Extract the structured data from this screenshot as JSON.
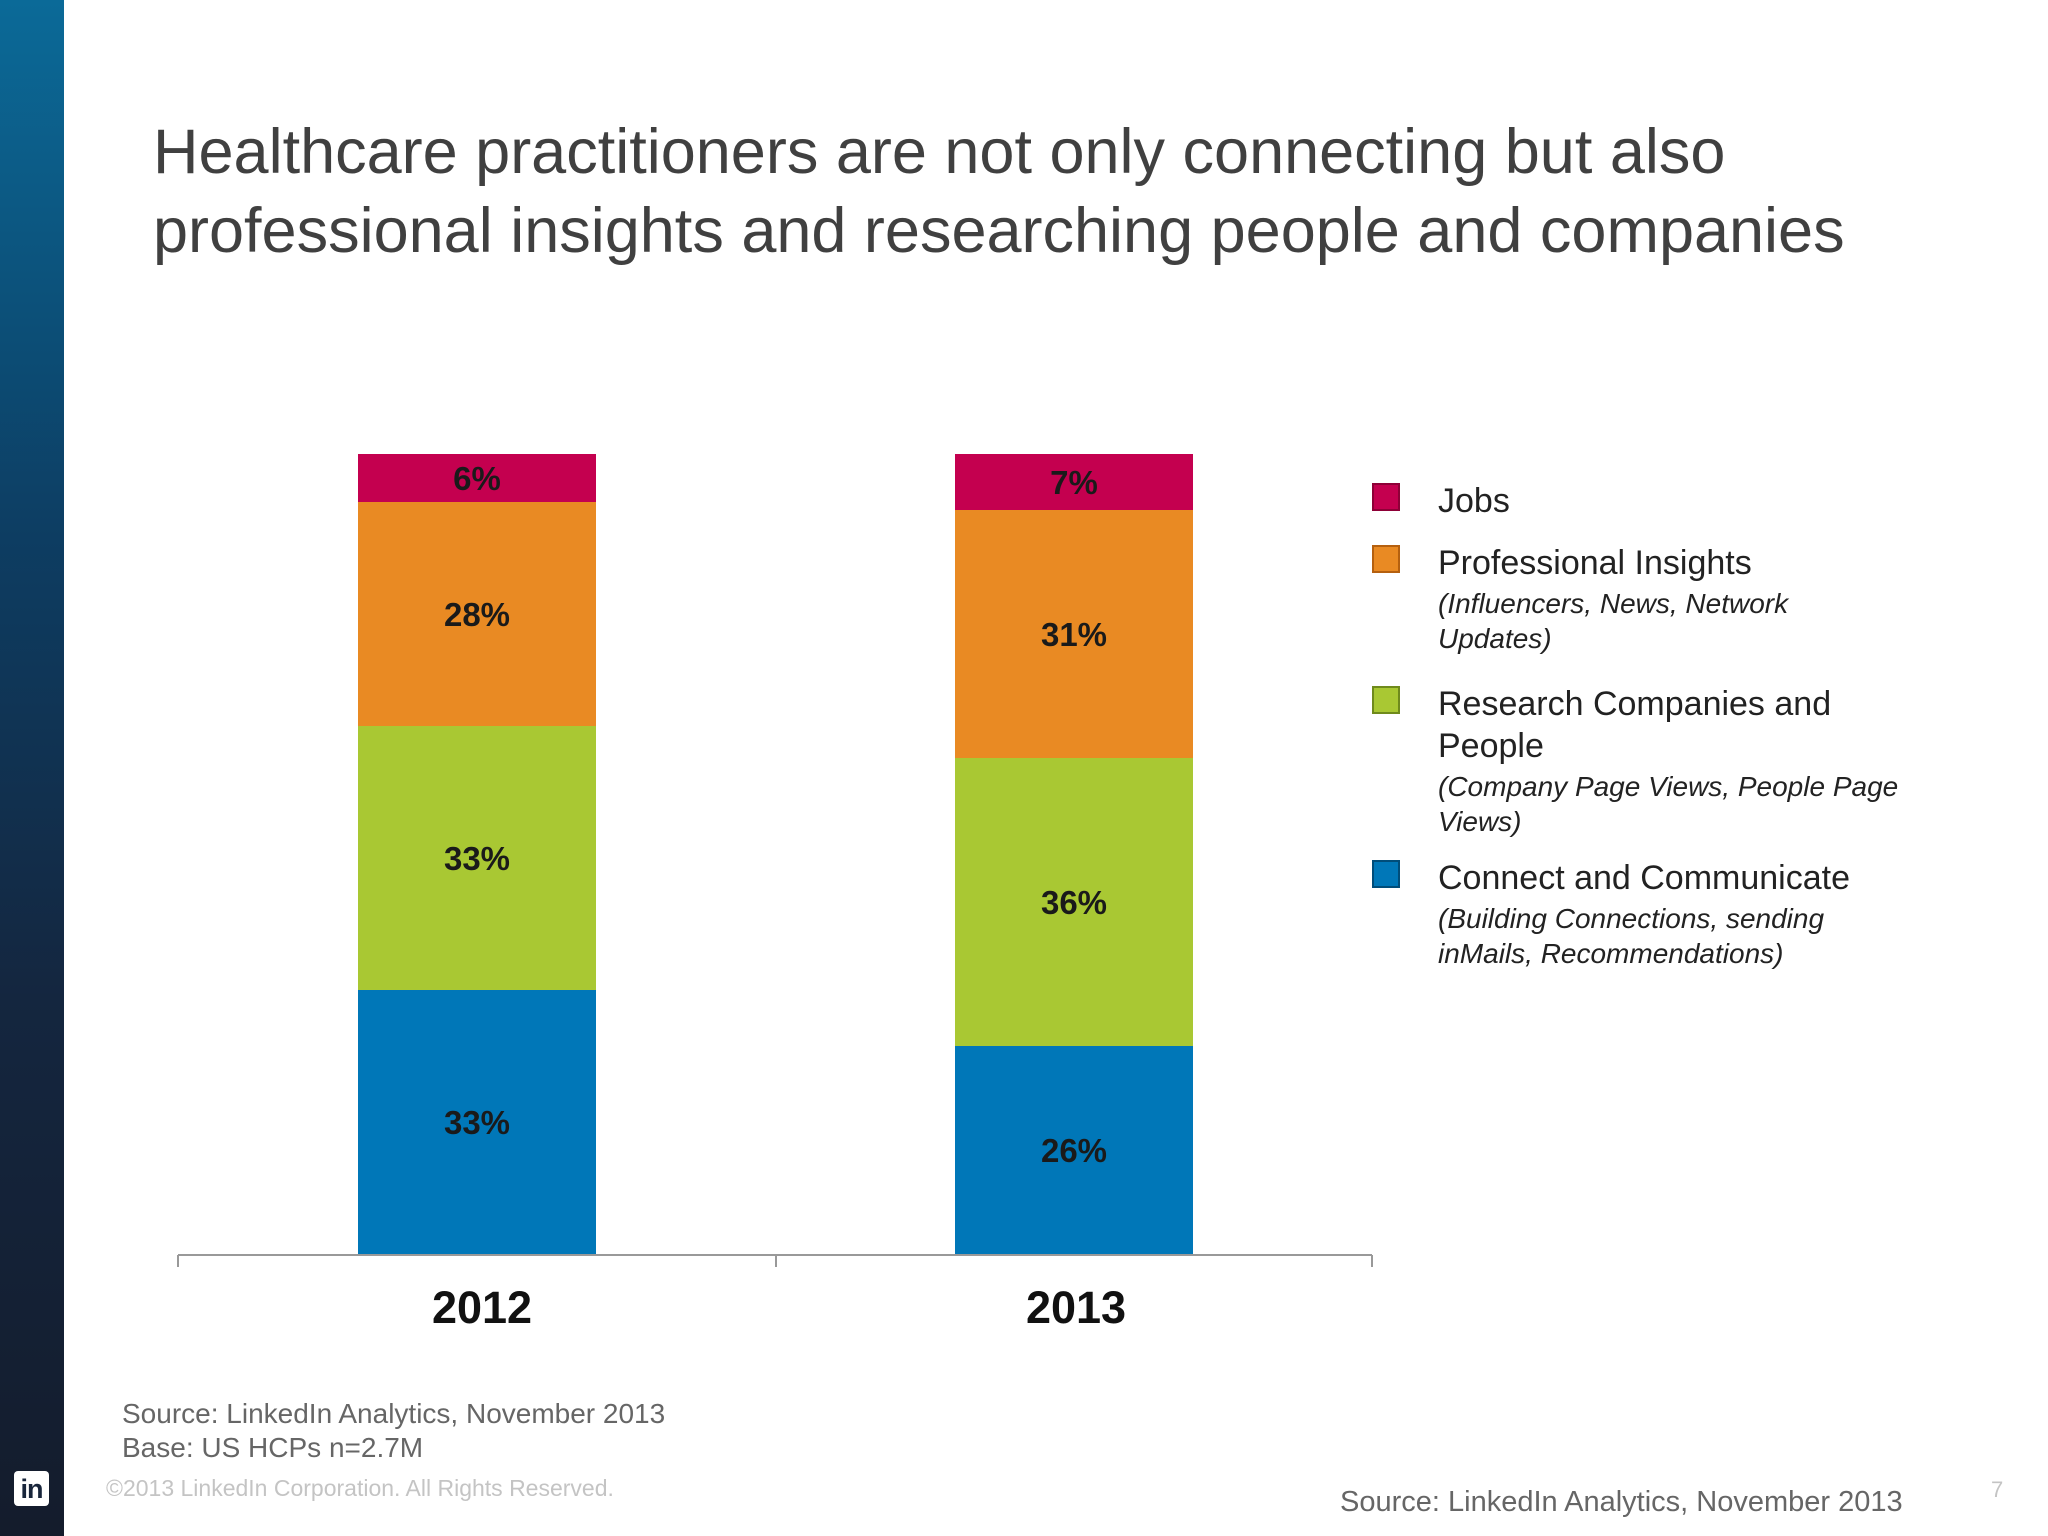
{
  "slide": {
    "title_lines": [
      "Healthcare practitioners are not only connecting but also",
      "professional insights and researching people and companies"
    ],
    "logo_text": "in",
    "source_lines": [
      "Source: LinkedIn Analytics, November 2013",
      "Base: US HCPs n=2.7M"
    ],
    "copyright": "©2013 LinkedIn Corporation. All Rights Reserved.",
    "source_bottom": "Source: LinkedIn Analytics, November 2013",
    "page_number": "7"
  },
  "chart_data": {
    "type": "bar",
    "stacked": true,
    "categories": [
      "2012",
      "2013"
    ],
    "series": [
      {
        "name": "Connect and Communicate",
        "values": [
          33,
          26
        ],
        "labels": [
          "33%",
          "26%"
        ],
        "color": "#0077b8"
      },
      {
        "name": "Research Companies and People",
        "values": [
          33,
          36
        ],
        "labels": [
          "33%",
          "36%"
        ],
        "color": "#a9c833"
      },
      {
        "name": "Professional Insights",
        "values": [
          28,
          31
        ],
        "labels": [
          "28%",
          "31%"
        ],
        "color": "#e98a23"
      },
      {
        "name": "Jobs",
        "values": [
          6,
          7
        ],
        "labels": [
          "6%",
          "7%"
        ],
        "color": "#c4004f"
      }
    ],
    "legend": [
      {
        "name": "Jobs",
        "lines": [
          "Jobs"
        ],
        "desc": [],
        "color": "#c4004f",
        "border": "#8e0037"
      },
      {
        "name": "Professional Insights",
        "lines": [
          "Professional Insights"
        ],
        "desc": [
          "(Influencers, News, Network",
          "Updates)"
        ],
        "color": "#e98a23",
        "border": "#b5600f"
      },
      {
        "name": "Research Companies and People",
        "lines": [
          "Research Companies and",
          "People"
        ],
        "desc": [
          "(Company Page Views, People Page",
          "Views)"
        ],
        "color": "#a9c833",
        "border": "#6f8a1c"
      },
      {
        "name": "Connect and Communicate",
        "lines": [
          "Connect and Communicate"
        ],
        "desc": [
          "(Building Connections, sending",
          "inMails, Recommendations)"
        ],
        "color": "#0077b8",
        "border": "#004d7a"
      }
    ],
    "legend_position": "right",
    "grid": false
  }
}
